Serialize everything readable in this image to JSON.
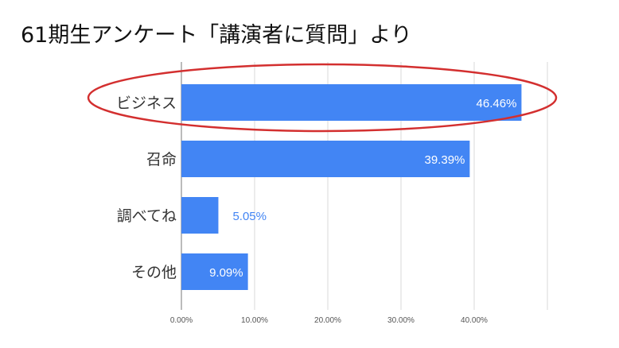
{
  "title": "61期生アンケート「講演者に質問」より",
  "chart_data": {
    "type": "bar",
    "orientation": "horizontal",
    "title": "",
    "xlabel": "",
    "ylabel": "",
    "categories": [
      "ビジネス",
      "召命",
      "調べてね",
      "その他"
    ],
    "values": [
      46.46,
      39.39,
      5.05,
      9.09
    ],
    "value_labels": [
      "46.46%",
      "39.39%",
      "5.05%",
      "9.09%"
    ],
    "xlim": [
      0,
      50
    ],
    "x_ticks": [
      0,
      10,
      20,
      30,
      40
    ],
    "x_tick_labels": [
      "0.00%",
      "10.00%",
      "20.00%",
      "30.00%",
      "40.00%"
    ],
    "grid": true,
    "bar_color": "#4285F4",
    "annotation": {
      "shape": "ellipse",
      "color": "#D32F2F",
      "target_category": "ビジネス"
    }
  }
}
